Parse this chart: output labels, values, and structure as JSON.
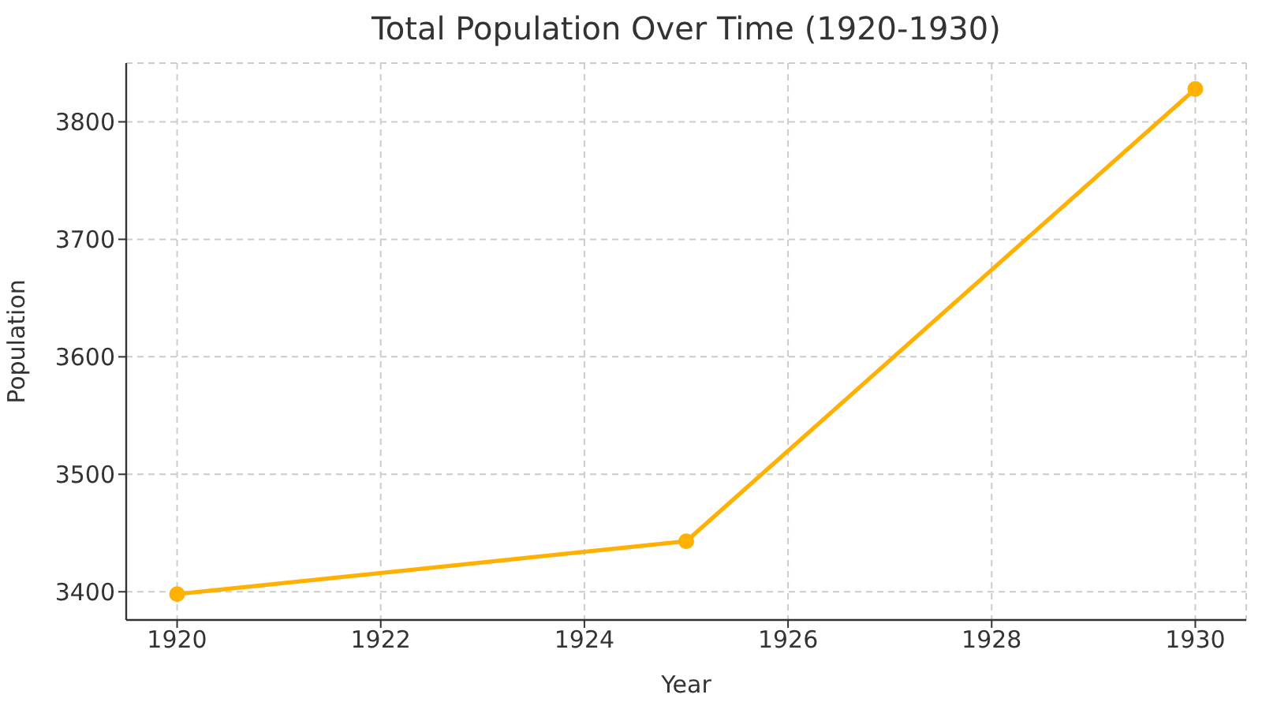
{
  "chart_data": {
    "type": "line",
    "title": "Total Population Over Time (1920-1930)",
    "xlabel": "Year",
    "ylabel": "Population",
    "x": [
      1920,
      1925,
      1930
    ],
    "series": [
      {
        "color": "#ffb000",
        "values": [
          3398,
          3443,
          3828
        ]
      }
    ],
    "xlim": [
      1919.5,
      1930.5
    ],
    "xticks": [
      1920,
      1922,
      1924,
      1926,
      1928,
      1930
    ],
    "ylim": [
      3376,
      3850
    ],
    "yticks": [
      3400,
      3500,
      3600,
      3700,
      3800
    ],
    "grid": true,
    "marker": "circle",
    "line_style": "solid"
  }
}
